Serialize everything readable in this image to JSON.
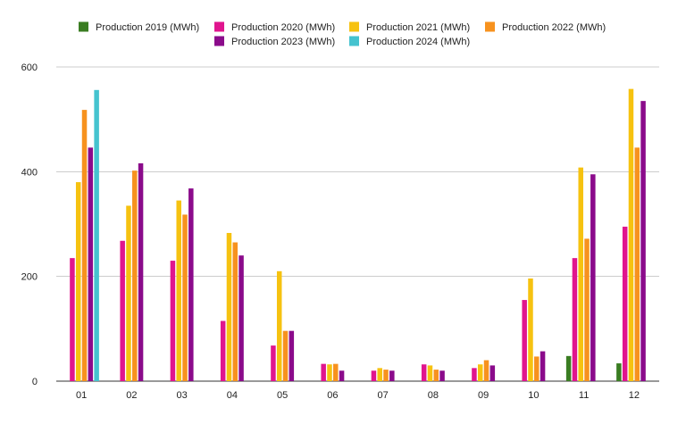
{
  "chart_data": {
    "type": "bar",
    "categories": [
      "01",
      "02",
      "03",
      "04",
      "05",
      "06",
      "07",
      "08",
      "09",
      "10",
      "11",
      "12"
    ],
    "series": [
      {
        "name": "Production 2019 (MWh)",
        "color": "#3a7d22",
        "values": [
          null,
          null,
          null,
          null,
          null,
          null,
          null,
          null,
          null,
          null,
          48,
          34
        ]
      },
      {
        "name": "Production 2020 (MWh)",
        "color": "#e0158e",
        "values": [
          235,
          268,
          230,
          115,
          68,
          33,
          20,
          32,
          25,
          155,
          235,
          295
        ]
      },
      {
        "name": "Production 2021 (MWh)",
        "color": "#f6c210",
        "values": [
          380,
          335,
          345,
          283,
          210,
          32,
          25,
          30,
          32,
          196,
          408,
          558
        ]
      },
      {
        "name": "Production 2022 (MWh)",
        "color": "#f7921e",
        "values": [
          518,
          402,
          318,
          265,
          96,
          33,
          22,
          22,
          40,
          47,
          272,
          446
        ]
      },
      {
        "name": "Production 2023 (MWh)",
        "color": "#8b0b8b",
        "values": [
          446,
          416,
          368,
          240,
          96,
          20,
          20,
          20,
          30,
          57,
          395,
          535
        ]
      },
      {
        "name": "Production 2024 (MWh)",
        "color": "#45c3cf",
        "values": [
          556,
          null,
          null,
          null,
          null,
          null,
          null,
          null,
          null,
          null,
          null,
          null
        ]
      }
    ],
    "y_ticks": [
      "0",
      "200",
      "400",
      "600"
    ],
    "ylim": [
      0,
      600
    ],
    "grid": true,
    "legend_position": "top-center"
  }
}
